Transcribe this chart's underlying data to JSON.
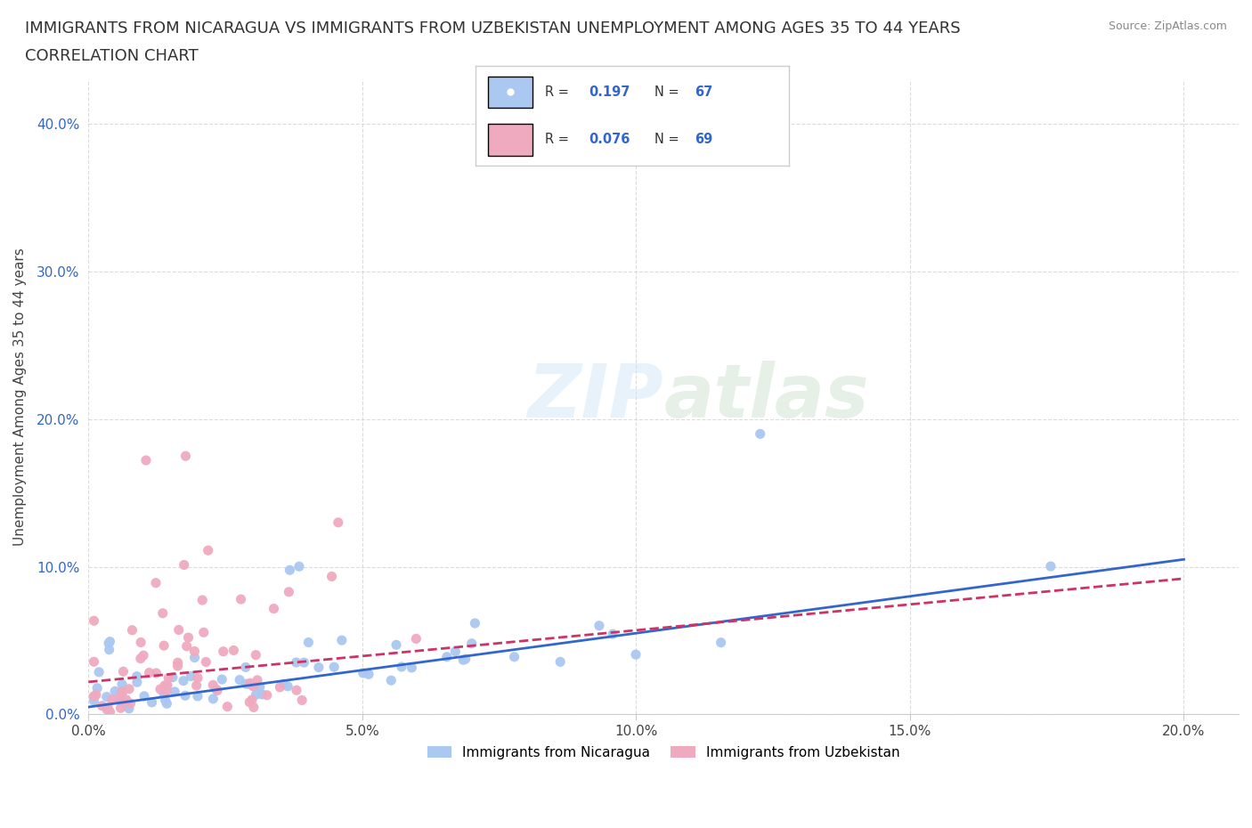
{
  "title_line1": "IMMIGRANTS FROM NICARAGUA VS IMMIGRANTS FROM UZBEKISTAN UNEMPLOYMENT AMONG AGES 35 TO 44 YEARS",
  "title_line2": "CORRELATION CHART",
  "source_text": "Source: ZipAtlas.com",
  "ylabel": "Unemployment Among Ages 35 to 44 years",
  "nicaragua_color": "#aac8f0",
  "nicaragua_line_color": "#3366cc",
  "uzbekistan_color": "#f0aac0",
  "uzbekistan_line_color": "#cc3366",
  "nicaragua_R": 0.197,
  "nicaragua_N": 67,
  "uzbekistan_R": 0.076,
  "uzbekistan_N": 69,
  "xlim": [
    0.0,
    0.21
  ],
  "ylim": [
    0.0,
    0.43
  ],
  "xticks": [
    0.0,
    0.05,
    0.1,
    0.15,
    0.2
  ],
  "yticks": [
    0.0,
    0.1,
    0.2,
    0.3,
    0.4
  ],
  "legend_label_nicaragua": "Immigrants from Nicaragua",
  "legend_label_uzbekistan": "Immigrants from Uzbekistan",
  "nic_trend_start_y": 0.005,
  "nic_trend_end_y": 0.105,
  "uzb_trend_start_y": 0.022,
  "uzb_trend_end_y": 0.092
}
